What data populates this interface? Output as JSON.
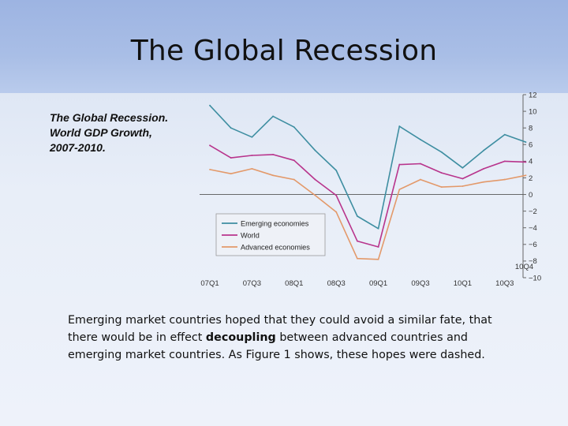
{
  "slide": {
    "title": "The Global Recession",
    "caption": [
      "The Global Recession.",
      "World GDP Growth,",
      "2007-2010."
    ],
    "body": {
      "part1": "Emerging market countries hoped that they could avoid a similar fate, that there would be in effect ",
      "emphasis": "decoupling",
      "part2": " between advanced countries and emerging market countries. As Figure 1 shows, these hopes were dashed."
    }
  },
  "chart_data": {
    "type": "line",
    "x": [
      "07Q1",
      "07Q2",
      "07Q3",
      "07Q4",
      "08Q1",
      "08Q2",
      "08Q3",
      "08Q4",
      "09Q1",
      "09Q2",
      "09Q3",
      "09Q4",
      "10Q1",
      "10Q2",
      "10Q3",
      "10Q4"
    ],
    "x_tick_labels": [
      "07Q1",
      "07Q3",
      "08Q1",
      "08Q3",
      "09Q1",
      "09Q3",
      "10Q1",
      "10Q3"
    ],
    "last_point_label": "10Q4",
    "ylim": [
      -10,
      12
    ],
    "y_ticks": [
      12,
      10,
      8,
      6,
      4,
      2,
      0,
      -2,
      -4,
      -6,
      -8,
      -10
    ],
    "y_tick_labels": [
      "12",
      "10",
      "8",
      "6",
      "4",
      "2",
      "0",
      "−2",
      "−4",
      "−6",
      "−8",
      "−10"
    ],
    "y_axis_side": "right",
    "grid": false,
    "zero_line": true,
    "legend_position": "bottom-left",
    "series": [
      {
        "name": "Emerging economies",
        "color": "#3e8ea1",
        "values": [
          10.7,
          8.0,
          6.9,
          9.4,
          8.1,
          5.3,
          2.9,
          -2.6,
          -4.1,
          8.2,
          6.6,
          5.1,
          3.2,
          5.3,
          7.2,
          6.3
        ]
      },
      {
        "name": "World",
        "color": "#b8348c",
        "values": [
          5.9,
          4.4,
          4.7,
          4.8,
          4.1,
          1.8,
          -0.1,
          -5.6,
          -6.3,
          3.6,
          3.7,
          2.6,
          1.9,
          3.1,
          4.0,
          3.9
        ]
      },
      {
        "name": "Advanced economies",
        "color": "#e3996a",
        "values": [
          3.0,
          2.5,
          3.1,
          2.3,
          1.8,
          -0.1,
          -2.1,
          -7.7,
          -7.8,
          0.6,
          1.8,
          0.9,
          1.0,
          1.5,
          1.8,
          2.3
        ]
      }
    ]
  }
}
